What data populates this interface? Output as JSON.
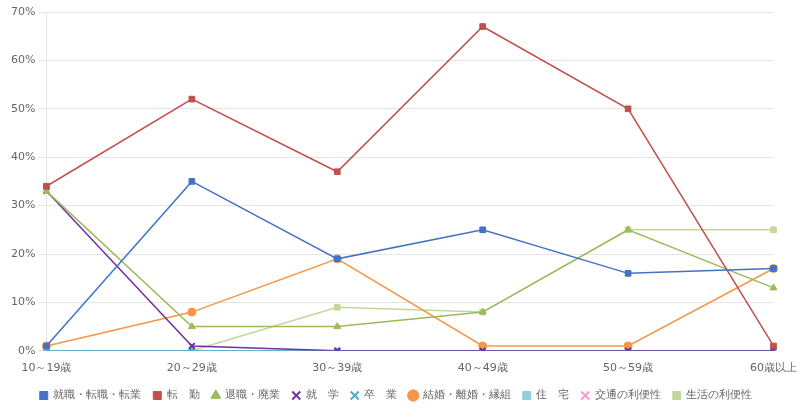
{
  "chart_data": {
    "type": "line",
    "categories": [
      "10～19歳",
      "20～29歳",
      "30～39歳",
      "40～49歳",
      "50～59歳",
      "60歳以上"
    ],
    "series": [
      {
        "name": "就職・転職・転業",
        "color": "#4472C4",
        "marker": "square",
        "values": [
          1,
          35,
          19,
          25,
          16,
          17
        ]
      },
      {
        "name": "転　勤",
        "color": "#C0504D",
        "marker": "square",
        "values": [
          34,
          52,
          37,
          67,
          50,
          1
        ]
      },
      {
        "name": "退職・廃業",
        "color": "#9BBB59",
        "marker": "triangle",
        "values": [
          33,
          5,
          5,
          8,
          25,
          13
        ]
      },
      {
        "name": "就　学",
        "color": "#7030A0",
        "marker": "x",
        "values": [
          33,
          1,
          0,
          0,
          0,
          0
        ]
      },
      {
        "name": "卒　業",
        "color": "#4BACC6",
        "marker": "x",
        "values": [
          0,
          0,
          0,
          0,
          0,
          0
        ]
      },
      {
        "name": "結婚・離婚・縁組",
        "color": "#F79646",
        "marker": "circle",
        "values": [
          1,
          8,
          19,
          1,
          1,
          17
        ]
      },
      {
        "name": "住　宅",
        "color": "#92CDDC",
        "marker": "square",
        "values": [
          0,
          0,
          0,
          0,
          0,
          0
        ]
      },
      {
        "name": "交通の利便性",
        "color": "#FF99CC",
        "marker": "x",
        "values": [
          0,
          0,
          0,
          0,
          0,
          0
        ]
      },
      {
        "name": "生活の利便性",
        "color": "#C4D79B",
        "marker": "square",
        "values": [
          0,
          0,
          9,
          8,
          25,
          25
        ]
      }
    ],
    "ylim": [
      0,
      70
    ],
    "yticks": [
      {
        "value": 0,
        "label": "0%"
      },
      {
        "value": 10,
        "label": "10%"
      },
      {
        "value": 20,
        "label": "20%"
      },
      {
        "value": 30,
        "label": "30%"
      },
      {
        "value": 40,
        "label": "40%"
      },
      {
        "value": 50,
        "label": "50%"
      },
      {
        "value": 60,
        "label": "60%"
      },
      {
        "value": 70,
        "label": "70%"
      }
    ],
    "grid": "y",
    "legend": "bottom"
  }
}
